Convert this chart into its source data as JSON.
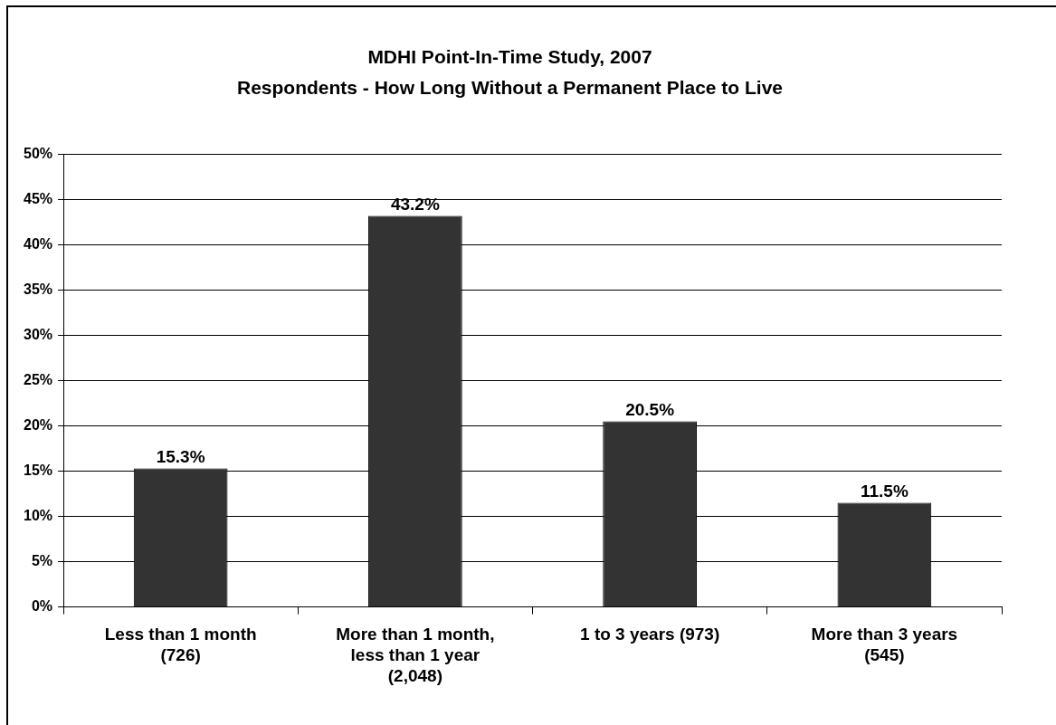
{
  "chart_data": {
    "type": "bar",
    "title": "MDHI Point-In-Time Study, 2007",
    "subtitle": "Respondents - How Long Without a Permanent Place to Live",
    "categories": [
      "Less than 1 month (726)",
      "More than 1 month, less than 1 year (2,048)",
      "1 to 3 years (973)",
      "More than 3 years (545)"
    ],
    "values": [
      15.3,
      43.2,
      20.5,
      11.5
    ],
    "color": "#333333",
    "value_labels": [
      "15.3%",
      "43.2%",
      "20.5%",
      "11.5%"
    ],
    "ylim": [
      0,
      50
    ],
    "yticks": [
      {
        "value": 0,
        "label": "0%"
      },
      {
        "value": 5,
        "label": "5%"
      },
      {
        "value": 10,
        "label": "10%"
      },
      {
        "value": 15,
        "label": "15%"
      },
      {
        "value": 20,
        "label": "20%"
      },
      {
        "value": 25,
        "label": "25%"
      },
      {
        "value": 30,
        "label": "30%"
      },
      {
        "value": 35,
        "label": "35%"
      },
      {
        "value": 40,
        "label": "40%"
      },
      {
        "value": 45,
        "label": "45%"
      },
      {
        "value": 50,
        "label": "50%"
      }
    ],
    "grid": "y",
    "legend": false
  }
}
